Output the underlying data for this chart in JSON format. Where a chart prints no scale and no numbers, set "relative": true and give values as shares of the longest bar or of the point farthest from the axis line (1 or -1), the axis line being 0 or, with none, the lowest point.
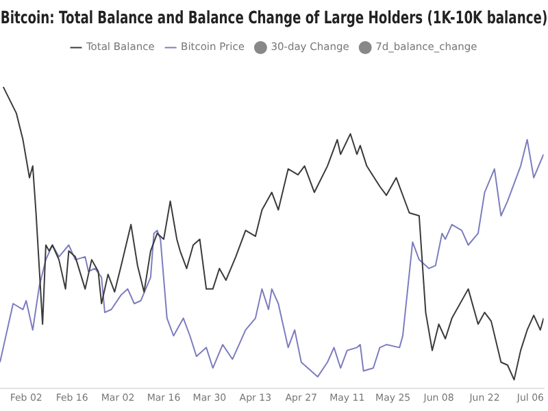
{
  "chart_data": {
    "type": "line",
    "title": "Bitcoin: Total Balance and Balance Change of Large Holders (1K-10K balance)",
    "relative": true,
    "legend": "top",
    "grid": false,
    "tick_labels": "x",
    "xlim": [
      "--01-25",
      "--07-10"
    ],
    "xticks": [
      {
        "value": "--02-02",
        "label": "Feb 02"
      },
      {
        "value": "--02-16",
        "label": "Feb 16"
      },
      {
        "value": "--03-02",
        "label": "Mar 02"
      },
      {
        "value": "--03-16",
        "label": "Mar 16"
      },
      {
        "value": "--03-30",
        "label": "Mar 30"
      },
      {
        "value": "--04-13",
        "label": "Apr 13"
      },
      {
        "value": "--04-27",
        "label": "Apr 27"
      },
      {
        "value": "--05-11",
        "label": "May 11"
      },
      {
        "value": "--05-25",
        "label": "May 25"
      },
      {
        "value": "--06-08",
        "label": "Jun 08"
      },
      {
        "value": "--06-22",
        "label": "Jun 22"
      },
      {
        "value": "--07-06",
        "label": "Jul 06"
      }
    ],
    "series": [
      {
        "name": "Total Balance",
        "color": "#3a3a3a",
        "marker": "none",
        "x": [
          "--01-26",
          "--01-30",
          "--02-01",
          "--02-03",
          "--02-04",
          "--02-05",
          "--02-07",
          "--02-08",
          "--02-09",
          "--02-10",
          "--02-12",
          "--02-14",
          "--02-15",
          "--02-17",
          "--02-20",
          "--02-22",
          "--02-24",
          "--02-25",
          "--02-27",
          "--03-01",
          "--03-03",
          "--03-06",
          "--03-08",
          "--03-10",
          "--03-12",
          "--03-14",
          "--03-16",
          "--03-18",
          "--03-20",
          "--03-21",
          "--03-23",
          "--03-25",
          "--03-27",
          "--03-29",
          "--03-31",
          "--04-02",
          "--04-04",
          "--04-07",
          "--04-10",
          "--04-13",
          "--04-15",
          "--04-18",
          "--04-20",
          "--04-23",
          "--04-26",
          "--04-28",
          "--05-01",
          "--05-05",
          "--05-08",
          "--05-09",
          "--05-12",
          "--05-14",
          "--05-15",
          "--05-17",
          "--05-21",
          "--05-23",
          "--05-26",
          "--05-30",
          "--06-02",
          "--06-04",
          "--06-06",
          "--06-08",
          "--06-10",
          "--06-12",
          "--06-17",
          "--06-20",
          "--06-22",
          "--06-24",
          "--06-27",
          "--06-29",
          "--07-01",
          "--07-03",
          "--07-05",
          "--07-07",
          "--07-09",
          "--07-10"
        ],
        "values": [
          1.0,
          0.91,
          0.82,
          0.69,
          0.73,
          0.57,
          0.19,
          0.46,
          0.44,
          0.46,
          0.41,
          0.31,
          0.44,
          0.42,
          0.31,
          0.41,
          0.37,
          0.26,
          0.36,
          0.3,
          0.39,
          0.53,
          0.39,
          0.3,
          0.44,
          0.5,
          0.48,
          0.61,
          0.48,
          0.44,
          0.38,
          0.46,
          0.48,
          0.31,
          0.31,
          0.38,
          0.34,
          0.42,
          0.51,
          0.49,
          0.58,
          0.64,
          0.58,
          0.72,
          0.7,
          0.73,
          0.64,
          0.73,
          0.82,
          0.77,
          0.84,
          0.77,
          0.8,
          0.73,
          0.66,
          0.63,
          0.69,
          0.57,
          0.56,
          0.23,
          0.1,
          0.19,
          0.14,
          0.21,
          0.31,
          0.19,
          0.23,
          0.2,
          0.06,
          0.05,
          0.0,
          0.1,
          0.17,
          0.22,
          0.17,
          0.21
        ]
      },
      {
        "name": "Bitcoin Price",
        "color": "#7c7cc0",
        "marker": "none",
        "x": [
          "--01-25",
          "--01-29",
          "--02-01",
          "--02-02",
          "--02-04",
          "--02-06",
          "--02-08",
          "--02-10",
          "--02-12",
          "--02-15",
          "--02-17",
          "--02-20",
          "--02-21",
          "--02-23",
          "--02-25",
          "--02-26",
          "--02-28",
          "--03-03",
          "--03-05",
          "--03-07",
          "--03-09",
          "--03-12",
          "--03-13",
          "--03-14",
          "--03-15",
          "--03-17",
          "--03-19",
          "--03-22",
          "--03-24",
          "--03-26",
          "--03-29",
          "--03-31",
          "--04-03",
          "--04-06",
          "--04-08",
          "--04-10",
          "--04-13",
          "--04-15",
          "--04-17",
          "--04-18",
          "--04-20",
          "--04-23",
          "--04-25",
          "--04-27",
          "--05-02",
          "--05-05",
          "--05-07",
          "--05-09",
          "--05-11",
          "--05-14",
          "--05-15",
          "--05-16",
          "--05-19",
          "--05-21",
          "--05-23",
          "--05-27",
          "--05-28",
          "--05-31",
          "--06-02",
          "--06-05",
          "--06-07",
          "--06-09",
          "--06-10",
          "--06-12",
          "--06-15",
          "--06-17",
          "--06-20",
          "--06-22",
          "--06-25",
          "--06-27",
          "--06-29",
          "--07-03",
          "--07-05",
          "--07-07",
          "--07-10"
        ],
        "values": [
          0.06,
          0.26,
          0.24,
          0.27,
          0.17,
          0.32,
          0.41,
          0.46,
          0.42,
          0.46,
          0.41,
          0.42,
          0.37,
          0.38,
          0.35,
          0.23,
          0.24,
          0.29,
          0.31,
          0.26,
          0.27,
          0.35,
          0.5,
          0.51,
          0.48,
          0.21,
          0.15,
          0.21,
          0.15,
          0.08,
          0.11,
          0.04,
          0.12,
          0.07,
          0.12,
          0.17,
          0.21,
          0.31,
          0.24,
          0.31,
          0.26,
          0.11,
          0.17,
          0.06,
          0.01,
          0.06,
          0.11,
          0.04,
          0.1,
          0.11,
          0.12,
          0.03,
          0.04,
          0.11,
          0.12,
          0.11,
          0.15,
          0.47,
          0.41,
          0.38,
          0.39,
          0.5,
          0.48,
          0.53,
          0.51,
          0.46,
          0.5,
          0.64,
          0.72,
          0.56,
          0.61,
          0.73,
          0.82,
          0.69,
          0.77
        ]
      },
      {
        "name": "30-day Change",
        "color": "#888888",
        "marker": "circle"
      },
      {
        "name": "7d_balance_change",
        "color": "#888888",
        "marker": "circle"
      }
    ]
  }
}
